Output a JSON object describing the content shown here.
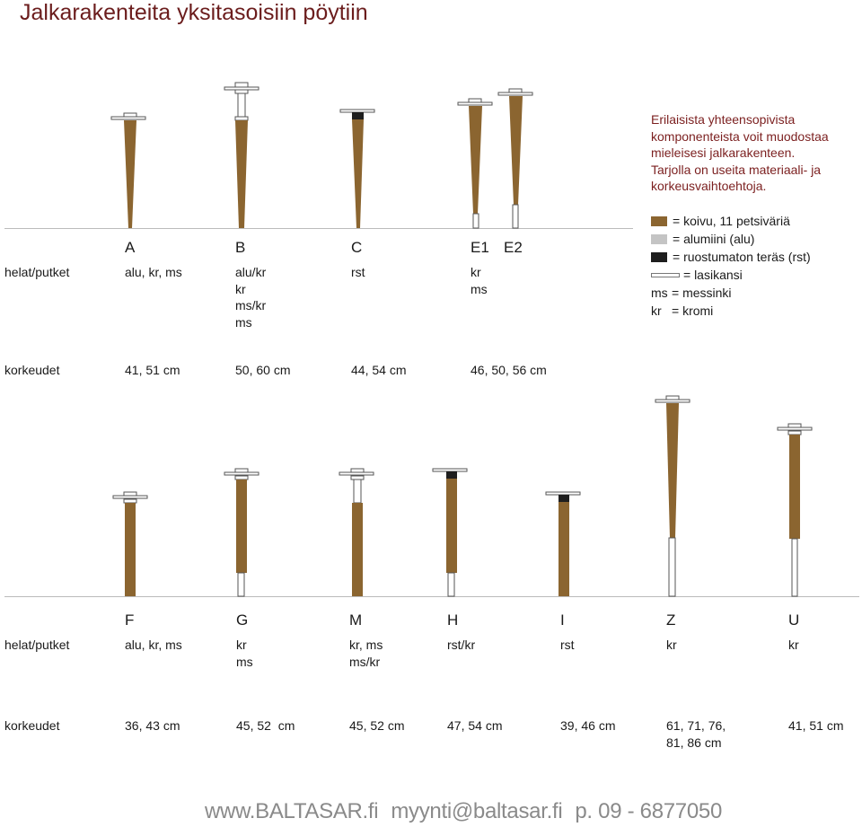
{
  "title": "Jalkarakenteita yksitasoisiin pöytiin",
  "intro": [
    "Erilaisista yhteensopivista",
    "komponenteista voit muodostaa",
    "mieleisesi jalkarakenteen.",
    "Tarjolla on useita materiaali- ja",
    "korkeusvaihtoehtoja."
  ],
  "legend": [
    {
      "swatch": "wood",
      "text": "= koivu, 11 petsiväriä"
    },
    {
      "swatch": "alu",
      "text": "= alumiini (alu)"
    },
    {
      "swatch": "rst",
      "text": "= ruostumaton teräs (rst)"
    },
    {
      "swatch": "glass",
      "text": "= lasikansi"
    },
    {
      "abbr": "ms",
      "text": "= messinki"
    },
    {
      "abbr": "kr",
      "text": "= kromi"
    }
  ],
  "colors": {
    "wood": "#8b6530",
    "alu": "#c4c4c4",
    "rst": "#1e1e1e",
    "title": "#6b1d1d",
    "footer": "#8a8a8a"
  },
  "row_labels": {
    "fittings": "helat/putket",
    "heights": "korkeudet"
  },
  "top": {
    "models": [
      {
        "label": "A",
        "fittings": [
          "alu, kr, ms"
        ],
        "heights": "41, 51 cm"
      },
      {
        "label": "B",
        "fittings": [
          "alu/kr",
          "kr",
          "ms/kr",
          "ms"
        ],
        "heights": "50, 60 cm"
      },
      {
        "label": "C",
        "fittings": [
          "rst"
        ],
        "heights": "44, 54 cm"
      },
      {
        "label": "E1",
        "fittings": [
          "kr",
          "ms"
        ],
        "heights": "46, 50, 56 cm"
      },
      {
        "label": "E2",
        "fittings": [],
        "heights": ""
      }
    ]
  },
  "bottom": {
    "models": [
      {
        "label": "F",
        "fittings": [
          "alu, kr, ms"
        ],
        "heights": [
          "36, 43 cm"
        ]
      },
      {
        "label": "G",
        "fittings": [
          "kr",
          "ms"
        ],
        "heights": [
          "45, 52  cm"
        ]
      },
      {
        "label": "M",
        "fittings": [
          "kr, ms",
          "ms/kr"
        ],
        "heights": [
          "45, 52 cm"
        ]
      },
      {
        "label": "H",
        "fittings": [
          "rst/kr"
        ],
        "heights": [
          "47, 54 cm"
        ]
      },
      {
        "label": "I",
        "fittings": [
          "rst"
        ],
        "heights": [
          "39, 46 cm"
        ]
      },
      {
        "label": "Z",
        "fittings": [
          "kr"
        ],
        "heights": [
          "61, 71, 76,",
          "81, 86 cm"
        ]
      },
      {
        "label": "U",
        "fittings": [
          "kr"
        ],
        "heights": [
          "41, 51 cm"
        ]
      }
    ]
  },
  "footer": {
    "web": "www.BALTASAR.fi",
    "email": "myynti@baltasar.fi",
    "phone": "p. 09 - 6877050"
  }
}
